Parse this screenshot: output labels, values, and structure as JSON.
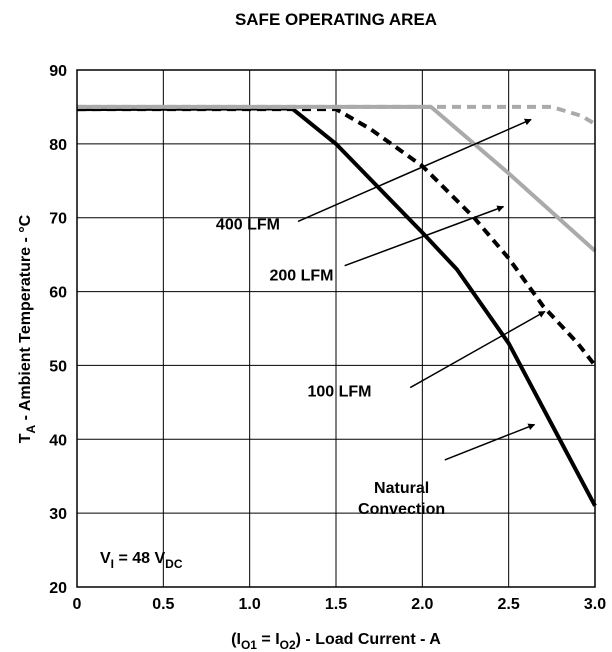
{
  "chart_data": {
    "type": "line",
    "title": "SAFE OPERATING AREA",
    "ylabel": {
      "main": "T",
      "sub": "A",
      "rest": " - Ambient Temperature - °C"
    },
    "xlabel": {
      "p1": "(I",
      "s1": "O1",
      "p2": " = I",
      "s2": "O2",
      "p3": ") - Load Current - A"
    },
    "xlim": [
      0,
      3.0
    ],
    "ylim": [
      20,
      90
    ],
    "xticks": [
      0,
      0.5,
      1.0,
      1.5,
      2.0,
      2.5,
      3.0
    ],
    "xtick_labels": [
      "0",
      "0.5",
      "1.0",
      "1.5",
      "2.0",
      "2.5",
      "3.0"
    ],
    "yticks": [
      20,
      30,
      40,
      50,
      60,
      70,
      80,
      90
    ],
    "ytick_labels": [
      "20",
      "30",
      "40",
      "50",
      "60",
      "70",
      "80",
      "90"
    ],
    "grid": true,
    "note": {
      "v": "V",
      "vsub": "I",
      "eq": " = 48 V",
      "dcsub": "DC"
    },
    "series": [
      {
        "name": "Natural Convection",
        "style": "solid",
        "color": "#000000",
        "x": [
          0,
          1.2,
          1.25,
          1.5,
          2.0,
          2.2,
          2.5,
          2.75,
          3.0
        ],
        "y": [
          84.7,
          84.8,
          84.7,
          80.0,
          68.0,
          63.0,
          53.0,
          42.0,
          31.0
        ]
      },
      {
        "name": "100 LFM",
        "style": "dashed",
        "color": "#000000",
        "x": [
          0,
          1.5,
          1.7,
          2.0,
          2.3,
          2.5,
          2.7,
          2.9,
          3.0
        ],
        "y": [
          84.7,
          84.7,
          82.0,
          77.0,
          70.0,
          64.5,
          58.0,
          53.0,
          50.0
        ]
      },
      {
        "name": "200 LFM",
        "style": "solid",
        "color": "#aaaaaa",
        "x": [
          0,
          2.05,
          2.5,
          3.0
        ],
        "y": [
          85.0,
          85.0,
          76.0,
          65.5
        ]
      },
      {
        "name": "400 LFM",
        "style": "dashed",
        "color": "#aaaaaa",
        "x": [
          0,
          2.75,
          2.92,
          3.0
        ],
        "y": [
          85.0,
          85.0,
          83.8,
          82.7
        ]
      }
    ],
    "annotations": [
      {
        "lines": [
          "400 LFM"
        ],
        "series": "400 LFM",
        "text_x": 0.99,
        "text_y": 68.4,
        "arrow_from": [
          1.28,
          69.5
        ],
        "arrow_to": [
          2.63,
          83.3
        ]
      },
      {
        "lines": [
          "200 LFM"
        ],
        "series": "200 LFM",
        "text_x": 1.3,
        "text_y": 61.5,
        "arrow_from": [
          1.55,
          63.5
        ],
        "arrow_to": [
          2.47,
          71.5
        ]
      },
      {
        "lines": [
          "100 LFM"
        ],
        "series": "100 LFM",
        "text_x": 1.52,
        "text_y": 45.8,
        "arrow_from": [
          1.93,
          47.0
        ],
        "arrow_to": [
          2.71,
          57.3
        ]
      },
      {
        "lines": [
          "Natural",
          "Convection"
        ],
        "series": "Natural Convection",
        "text_x": 1.88,
        "text_y": 32.7,
        "arrow_from": [
          2.13,
          37.2
        ],
        "arrow_to": [
          2.65,
          42.0
        ]
      }
    ]
  }
}
